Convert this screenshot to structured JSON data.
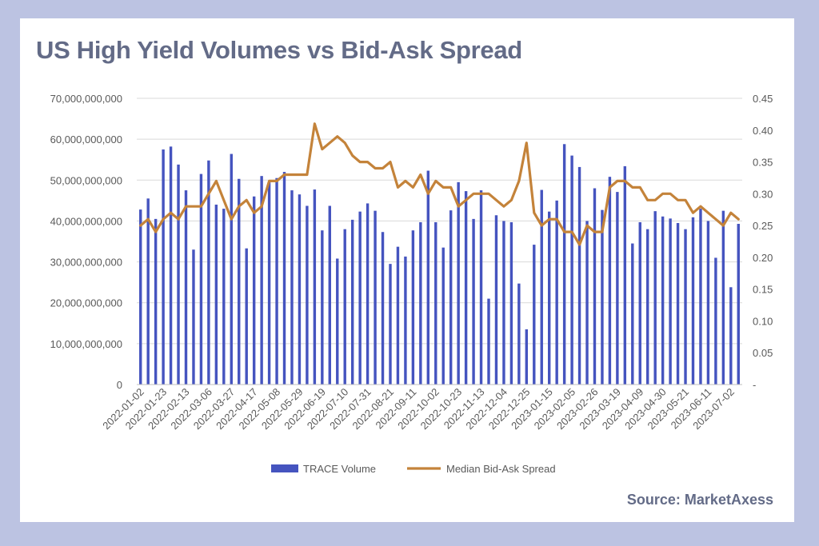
{
  "title": "US High Yield Volumes vs Bid-Ask Spread",
  "source": "Source: MarketAxess",
  "colors": {
    "background": "#bcc3e2",
    "card": "#ffffff",
    "title": "#636b87",
    "bars": "#4554bf",
    "line": "#c4833a",
    "grid": "#d9d9d9",
    "axis_text": "#595959"
  },
  "chart_data": {
    "type": "bar",
    "title": "US High Yield Volumes vs Bid-Ask Spread",
    "y_left": {
      "min": 0,
      "max": 70000000000,
      "ticks": [
        "0",
        "10,000,000,000",
        "20,000,000,000",
        "30,000,000,000",
        "40,000,000,000",
        "50,000,000,000",
        "60,000,000,000",
        "70,000,000,000"
      ]
    },
    "y_right": {
      "min": 0,
      "max": 0.45,
      "ticks": [
        "-",
        "0.05",
        "0.10",
        "0.15",
        "0.20",
        "0.25",
        "0.30",
        "0.35",
        "0.40",
        "0.45"
      ]
    },
    "x_tick_labels": [
      "2022-01-02",
      "2022-01-23",
      "2022-02-13",
      "2022-03-06",
      "2022-03-27",
      "2022-04-17",
      "2022-05-08",
      "2022-05-29",
      "2022-06-19",
      "2022-07-10",
      "2022-07-31",
      "2022-08-21",
      "2022-09-11",
      "2022-10-02",
      "2022-10-23",
      "2022-11-13",
      "2022-12-04",
      "2022-12-25",
      "2023-01-15",
      "2023-02-05",
      "2023-02-26",
      "2023-03-19",
      "2023-04-09",
      "2023-04-30",
      "2023-05-21",
      "2023-06-11",
      "2023-07-02"
    ],
    "legend": {
      "position": "bottom",
      "items": [
        {
          "label": "TRACE Volume",
          "kind": "bar"
        },
        {
          "label": "Median Bid-Ask Spread",
          "kind": "line"
        }
      ]
    },
    "series": [
      {
        "name": "TRACE Volume",
        "type": "bar",
        "axis": "left",
        "values": [
          42800000000,
          45500000000,
          40500000000,
          57500000000,
          58200000000,
          53800000000,
          47500000000,
          33000000000,
          51500000000,
          54800000000,
          44000000000,
          43000000000,
          56400000000,
          50300000000,
          33300000000,
          46000000000,
          51000000000,
          49500000000,
          50500000000,
          52000000000,
          47500000000,
          46500000000,
          43700000000,
          47700000000,
          37700000000,
          43700000000,
          30800000000,
          38000000000,
          40300000000,
          42300000000,
          44300000000,
          42500000000,
          37300000000,
          29500000000,
          33700000000,
          31300000000,
          37700000000,
          39700000000,
          52300000000,
          39700000000,
          33500000000,
          42600000000,
          49500000000,
          47300000000,
          40500000000,
          47500000000,
          21000000000,
          41400000000,
          40000000000,
          39700000000,
          24700000000,
          13500000000,
          34200000000,
          47600000000,
          42300000000,
          45000000000,
          58800000000,
          56000000000,
          53200000000,
          40000000000,
          48000000000,
          42700000000,
          50800000000,
          47100000000,
          53400000000,
          34500000000,
          39700000000,
          38000000000,
          42400000000,
          41100000000,
          40600000000,
          39500000000,
          38000000000,
          40900000000,
          43000000000,
          40000000000,
          31000000000,
          42500000000,
          23800000000,
          39300000000
        ]
      },
      {
        "name": "Median Bid-Ask Spread",
        "type": "line",
        "axis": "right",
        "values": [
          0.25,
          0.26,
          0.24,
          0.26,
          0.27,
          0.26,
          0.28,
          0.28,
          0.28,
          0.3,
          0.32,
          0.29,
          0.26,
          0.28,
          0.29,
          0.27,
          0.28,
          0.32,
          0.32,
          0.33,
          0.33,
          0.33,
          0.33,
          0.41,
          0.37,
          0.38,
          0.39,
          0.38,
          0.36,
          0.35,
          0.35,
          0.34,
          0.34,
          0.35,
          0.31,
          0.32,
          0.31,
          0.33,
          0.3,
          0.32,
          0.31,
          0.31,
          0.28,
          0.29,
          0.3,
          0.3,
          0.3,
          0.29,
          0.28,
          0.29,
          0.32,
          0.38,
          0.27,
          0.25,
          0.26,
          0.26,
          0.24,
          0.24,
          0.22,
          0.25,
          0.24,
          0.24,
          0.31,
          0.32,
          0.32,
          0.31,
          0.31,
          0.29,
          0.29,
          0.3,
          0.3,
          0.29,
          0.29,
          0.27,
          0.28,
          0.27,
          0.26,
          0.25,
          0.27,
          0.26
        ]
      }
    ]
  }
}
